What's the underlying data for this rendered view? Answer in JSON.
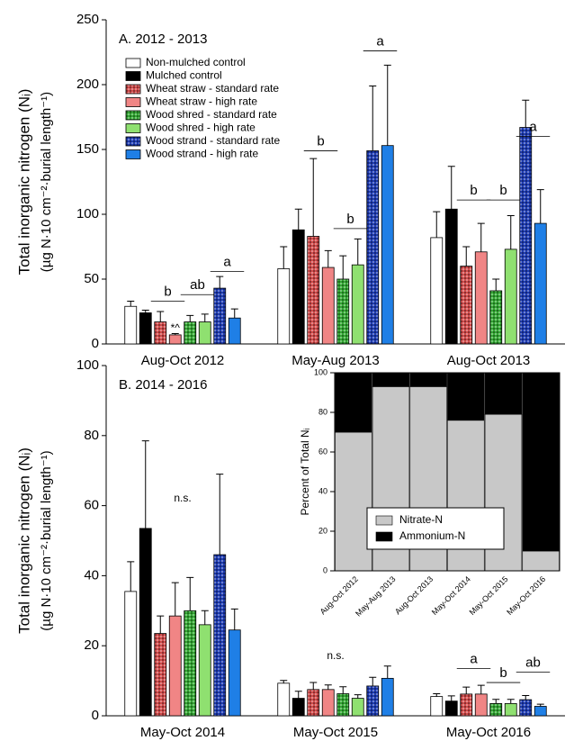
{
  "chart_data": [
    {
      "type": "bar",
      "title": "A. 2012 - 2013",
      "ylabel": [
        "Total inorganic nitrogen (Nᵢ)",
        "(µg N·10 cm⁻²·burial length⁻¹)"
      ],
      "categories": [
        "Aug-Oct 2012",
        "May-Aug 2013",
        "Aug-Oct 2013"
      ],
      "series": [
        {
          "name": "Non-mulched control",
          "color": "#ffffff",
          "values": [
            29,
            58,
            82
          ],
          "errors": [
            4,
            17,
            20
          ]
        },
        {
          "name": "Mulched control",
          "color": "#000000",
          "values": [
            24,
            88,
            104
          ],
          "errors": [
            2,
            16,
            33
          ]
        },
        {
          "name": "Wheat straw - standard rate",
          "color": "#d24b4b",
          "pattern": true,
          "values": [
            17,
            83,
            60
          ],
          "errors": [
            8,
            60,
            15
          ]
        },
        {
          "name": "Wheat straw - high rate",
          "color": "#f08585",
          "values": [
            7,
            59,
            71
          ],
          "errors": [
            1,
            13,
            22
          ]
        },
        {
          "name": "Wood shred - standard rate",
          "color": "#33a833",
          "pattern": true,
          "values": [
            17,
            50,
            41
          ],
          "errors": [
            5,
            18,
            9
          ]
        },
        {
          "name": "Wood shred - high rate",
          "color": "#8fe070",
          "values": [
            17,
            61,
            73
          ],
          "errors": [
            6,
            20,
            26
          ]
        },
        {
          "name": "Wood strand - standard rate",
          "color": "#1e3cb4",
          "pattern": true,
          "values": [
            43,
            149,
            167
          ],
          "errors": [
            9,
            50,
            21
          ]
        },
        {
          "name": "Wood strand - high rate",
          "color": "#1f7fe6",
          "values": [
            20,
            153,
            93
          ],
          "errors": [
            7,
            62,
            26
          ]
        }
      ],
      "annotations": [
        "b",
        "ab",
        "a",
        "*^",
        "b",
        "b",
        "a",
        "b",
        "b",
        "a"
      ],
      "ylim": [
        0,
        250
      ],
      "yticks": [
        0,
        50,
        100,
        150,
        200,
        250
      ],
      "legend": "upper left"
    },
    {
      "type": "bar",
      "title": "B. 2014 - 2016",
      "ylabel": [
        "Total inorganic nitrogen (Nᵢ)",
        "(µg N·10 cm⁻²·burial length⁻¹)"
      ],
      "categories": [
        "May-Oct 2014",
        "May-Oct 2015",
        "May-Oct 2016"
      ],
      "series": [
        {
          "name": "Non-mulched control",
          "color": "#ffffff",
          "values": [
            35.5,
            9.3,
            5.5
          ],
          "errors": [
            8.5,
            0.8,
            0.8
          ]
        },
        {
          "name": "Mulched control",
          "color": "#000000",
          "values": [
            53.5,
            5,
            4.2
          ],
          "errors": [
            25,
            2,
            1.5
          ]
        },
        {
          "name": "Wheat straw - standard rate",
          "color": "#d24b4b",
          "pattern": true,
          "values": [
            23.5,
            7.5,
            6.2
          ],
          "errors": [
            5,
            2,
            2
          ]
        },
        {
          "name": "Wheat straw - high rate",
          "color": "#f08585",
          "values": [
            28.5,
            7.5,
            6.2
          ],
          "errors": [
            9.5,
            1.3,
            2.5
          ]
        },
        {
          "name": "Wood shred - standard rate",
          "color": "#33a833",
          "pattern": true,
          "values": [
            30,
            6.3,
            3.5
          ],
          "errors": [
            9.5,
            2,
            1.2
          ]
        },
        {
          "name": "Wood shred - high rate",
          "color": "#8fe070",
          "values": [
            26,
            5,
            3.5
          ],
          "errors": [
            4,
            1,
            1.2
          ]
        },
        {
          "name": "Wood strand - standard rate",
          "color": "#1e3cb4",
          "pattern": true,
          "values": [
            46,
            8.5,
            4.6
          ],
          "errors": [
            23,
            2.5,
            1.2
          ]
        },
        {
          "name": "Wood strand - high rate",
          "color": "#1f7fe6",
          "values": [
            24.5,
            10.7,
            2.7
          ],
          "errors": [
            6,
            3.5,
            0.6
          ]
        }
      ],
      "annotations": [
        "n.s.",
        "n.s.",
        "a",
        "b",
        "ab"
      ],
      "ylim": [
        0,
        100
      ],
      "yticks": [
        0,
        20,
        40,
        60,
        80,
        100
      ]
    },
    {
      "type": "stacked_bar",
      "ylabel": "Percent of Total Nᵢ",
      "categories": [
        "Aug-Oct 2012",
        "May-Aug 2013",
        "Aug-Oct 2013",
        "May-Oct 2014",
        "May-Oct 2015",
        "May-Oct 2016"
      ],
      "series": [
        {
          "name": "Nitrate-N",
          "color": "#c8c8c8",
          "values": [
            70,
            93,
            93,
            76,
            79,
            10
          ]
        },
        {
          "name": "Ammonium-N",
          "color": "#000000",
          "values": [
            30,
            7,
            7,
            24,
            21,
            90
          ]
        }
      ],
      "ylim": [
        0,
        100
      ],
      "yticks": [
        0,
        20,
        40,
        60,
        80,
        100
      ],
      "legend": "lower center"
    }
  ]
}
